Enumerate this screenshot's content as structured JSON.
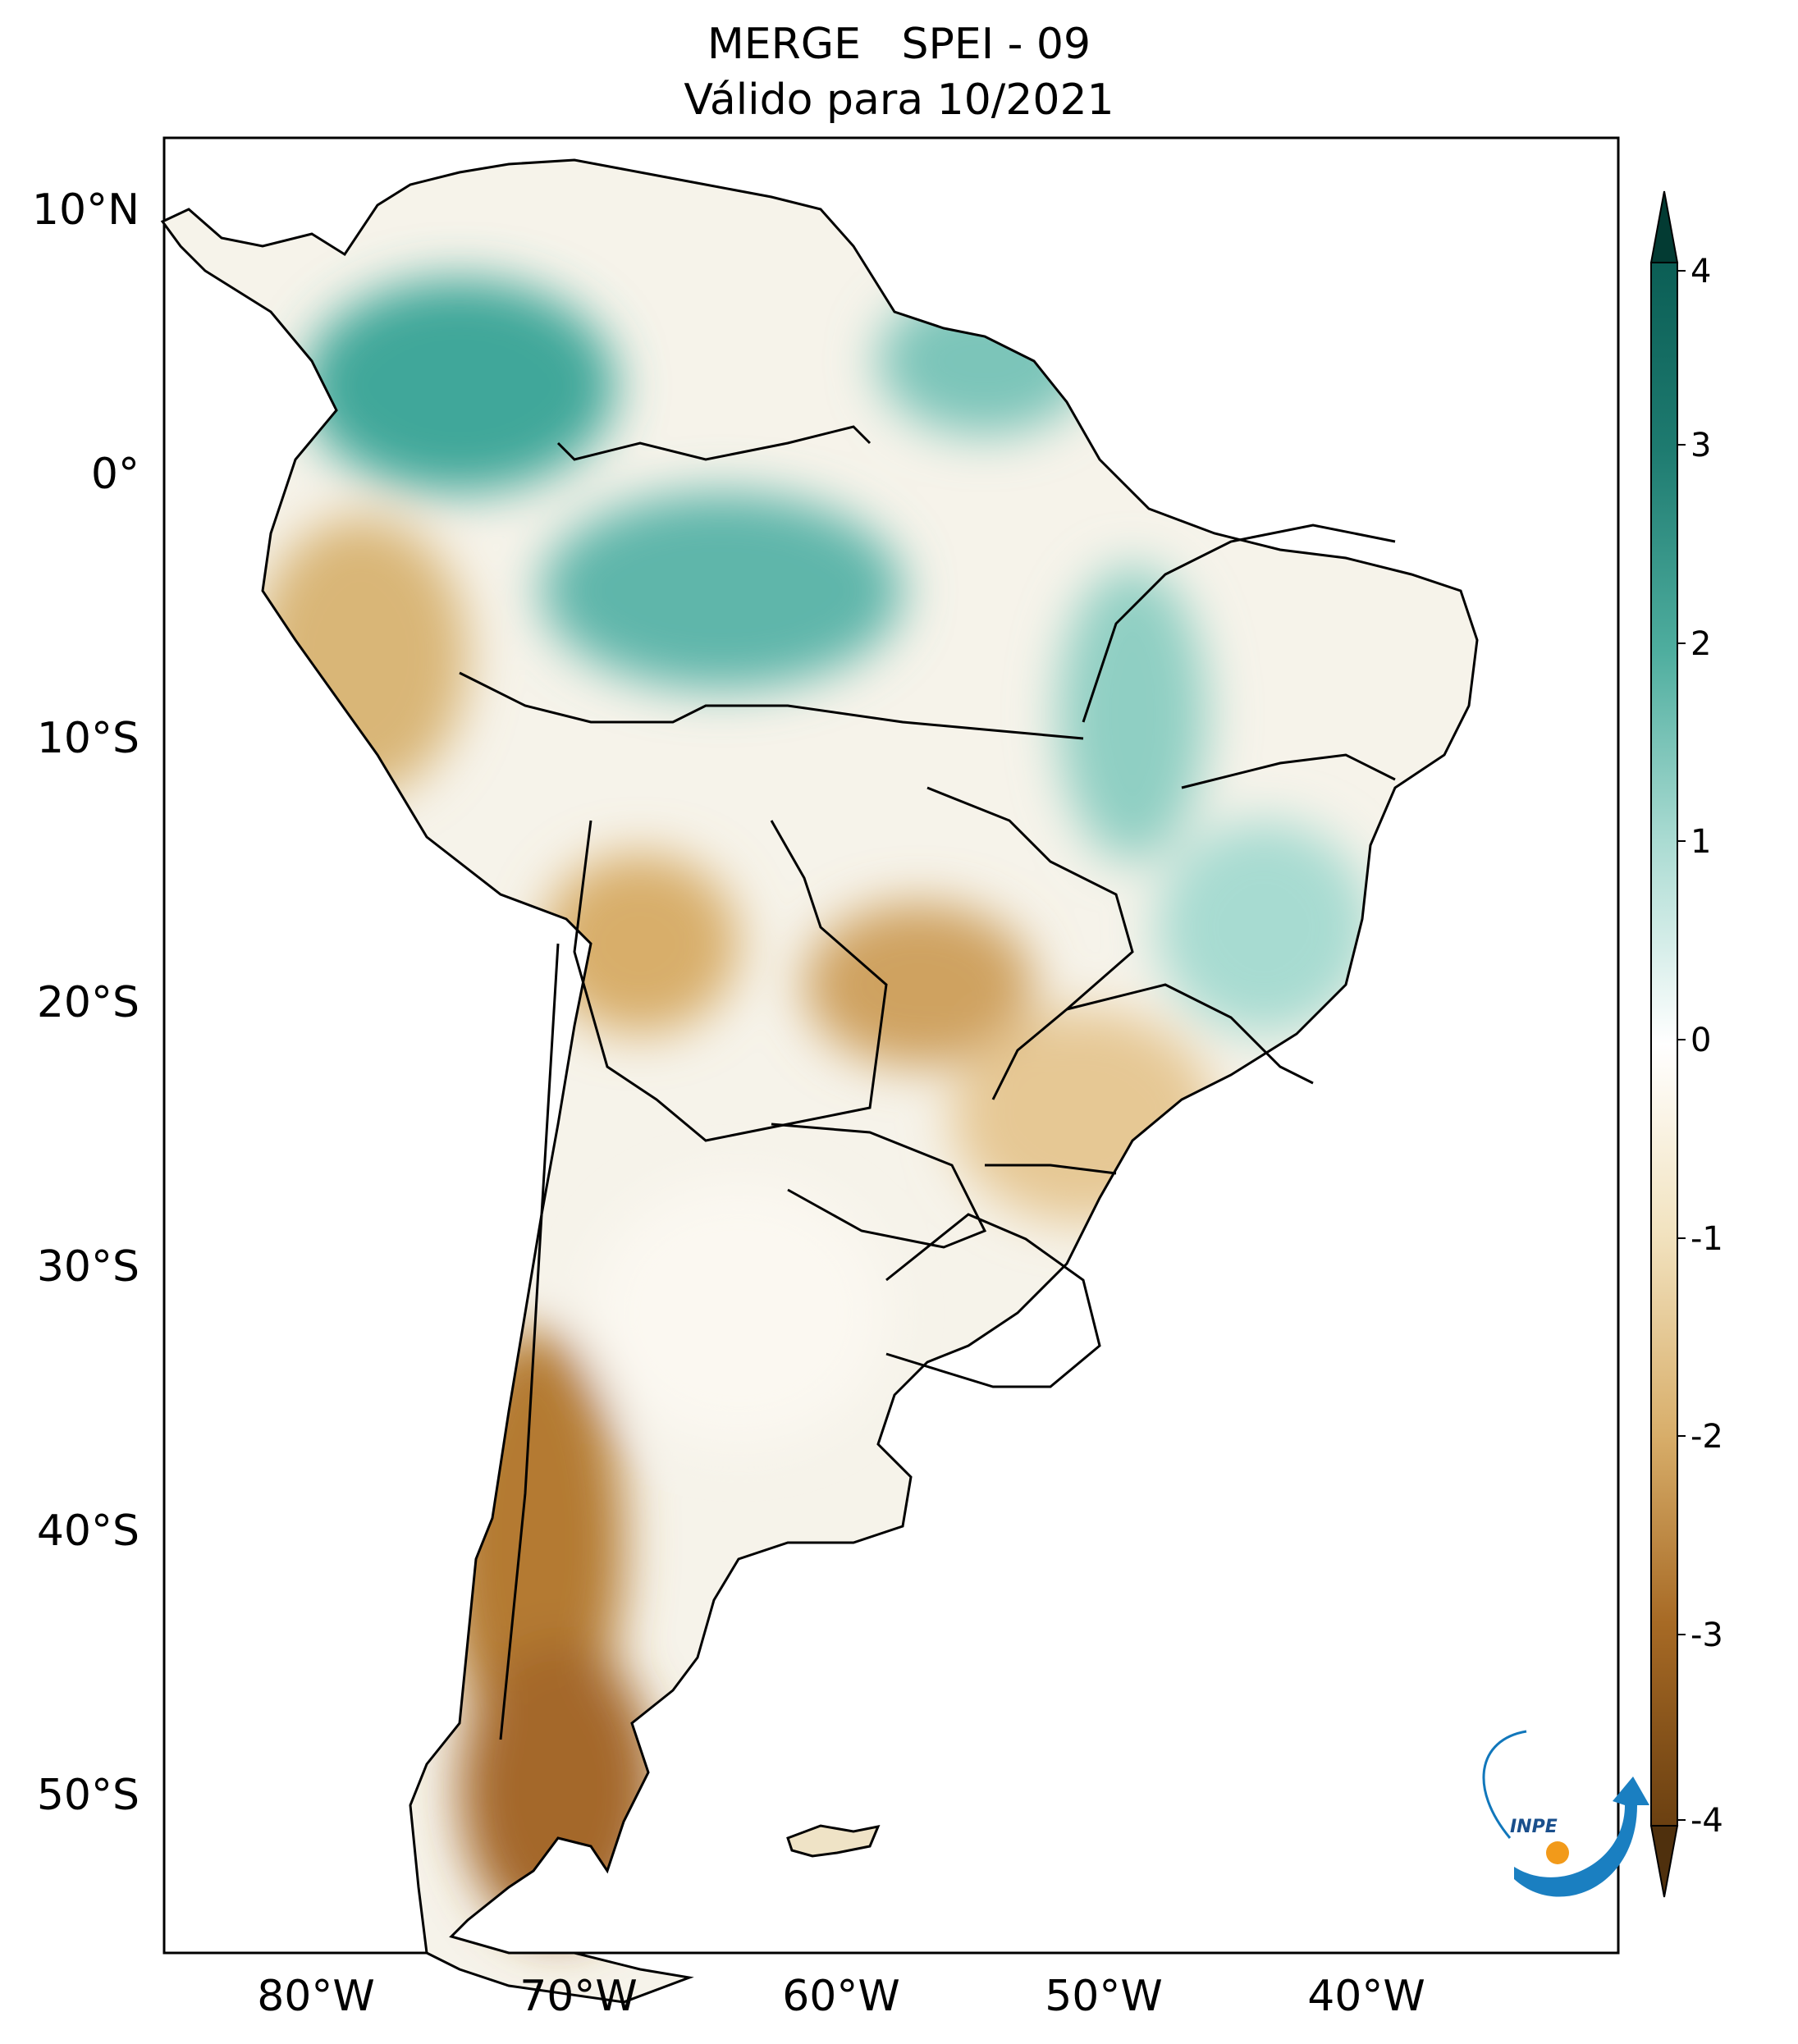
{
  "title": {
    "line1": "MERGE   SPEI - 09",
    "line2": "Válido para 10/2021"
  },
  "map": {
    "region": "South America",
    "latitude_labels": [
      "10°N",
      "0°",
      "10°S",
      "20°S",
      "30°S",
      "40°S",
      "50°S"
    ],
    "longitude_labels": [
      "80°W",
      "70°W",
      "60°W",
      "50°W",
      "40°W"
    ],
    "colors": {
      "wet_strong": "#0b5e55",
      "wet_mid": "#3fa79a",
      "wet_light": "#b4e0d8",
      "neutral": "#ffffff",
      "dry_light": "#f1dfb6",
      "dry_mid": "#d3a55c",
      "dry_strong": "#9a5f1c",
      "border": "#000000"
    }
  },
  "colorbar": {
    "ticks": [
      "4",
      "3",
      "2",
      "1",
      "0",
      "-1",
      "-2",
      "-3",
      "-4"
    ],
    "range": [
      -4,
      4
    ],
    "extend": "both",
    "colors_top_to_bottom": [
      "#033b33",
      "#0b5e55",
      "#2a8a7f",
      "#5fb6aa",
      "#aadbd2",
      "#ffffff",
      "#f2e3c0",
      "#dcb476",
      "#b6792f",
      "#86511a",
      "#4f300d"
    ]
  },
  "logo": {
    "text": "INPE"
  }
}
